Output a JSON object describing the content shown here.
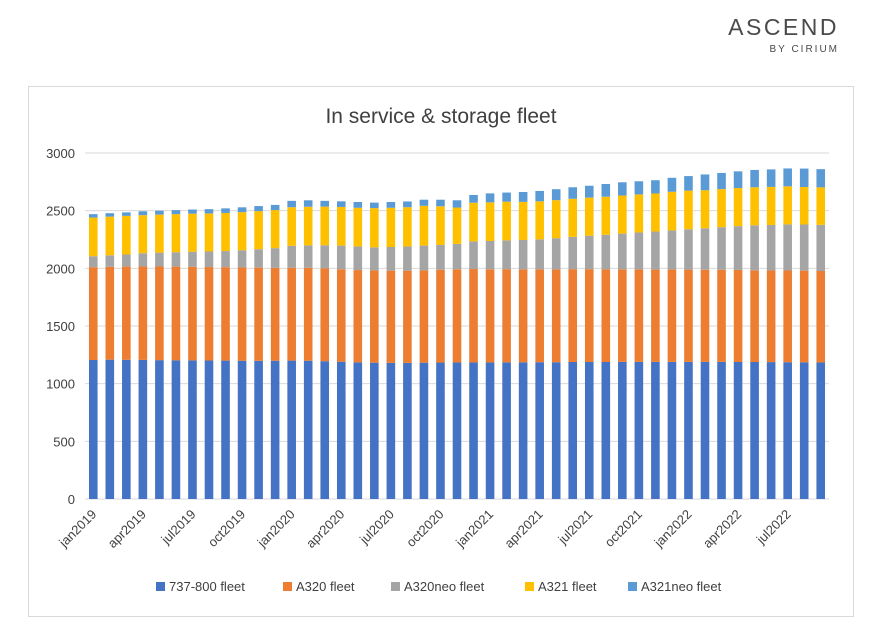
{
  "brand": {
    "name": "ASCEND",
    "sub": "BY CIRIUM"
  },
  "chart_data": {
    "type": "bar",
    "stacked": true,
    "title": "In service & storage fleet",
    "xlabel": "",
    "ylabel": "",
    "ylim": [
      0,
      3000
    ],
    "yticks": [
      0,
      500,
      1000,
      1500,
      2000,
      2500,
      3000
    ],
    "grid": true,
    "legend_position": "bottom",
    "categories": [
      "jan2019",
      "feb2019",
      "mar2019",
      "apr2019",
      "may2019",
      "jun2019",
      "jul2019",
      "aug2019",
      "sep2019",
      "oct2019",
      "nov2019",
      "dec2019",
      "jan2020",
      "feb2020",
      "mar2020",
      "apr2020",
      "may2020",
      "jun2020",
      "jul2020",
      "aug2020",
      "sep2020",
      "oct2020",
      "nov2020",
      "dec2020",
      "jan2021",
      "feb2021",
      "mar2021",
      "apr2021",
      "may2021",
      "jun2021",
      "jul2021",
      "aug2021",
      "sep2021",
      "oct2021",
      "nov2021",
      "dec2021",
      "jan2022",
      "feb2022",
      "mar2022",
      "apr2022",
      "may2022",
      "jun2022",
      "jul2022",
      "aug2022",
      "sep2022"
    ],
    "x_tick_labels": [
      "jan2019",
      "apr2019",
      "jul2019",
      "oct2019",
      "jan2020",
      "apr2020",
      "jul2020",
      "oct2020",
      "jan2021",
      "apr2021",
      "jul2021",
      "oct2021",
      "jan2022",
      "apr2022",
      "jul2022"
    ],
    "series": [
      {
        "name": "737-800 fleet",
        "color": "#4472c4",
        "values": [
          1205,
          1208,
          1207,
          1206,
          1204,
          1203,
          1202,
          1201,
          1200,
          1199,
          1198,
          1199,
          1200,
          1199,
          1195,
          1190,
          1185,
          1182,
          1180,
          1180,
          1182,
          1183,
          1184,
          1184,
          1184,
          1185,
          1185,
          1186,
          1186,
          1188,
          1188,
          1188,
          1189,
          1189,
          1189,
          1189,
          1189,
          1189,
          1189,
          1188,
          1188,
          1187,
          1186,
          1185,
          1184
        ]
      },
      {
        "name": "A320 fleet",
        "color": "#ed7d31",
        "values": [
          805,
          805,
          808,
          810,
          812,
          812,
          812,
          810,
          810,
          808,
          808,
          806,
          805,
          805,
          805,
          802,
          800,
          800,
          800,
          800,
          800,
          805,
          808,
          810,
          808,
          808,
          806,
          805,
          805,
          805,
          805,
          803,
          802,
          802,
          800,
          800,
          800,
          798,
          798,
          798,
          795,
          794,
          795,
          795,
          793
        ]
      },
      {
        "name": "A320neo fleet",
        "color": "#a5a5a5",
        "values": [
          95,
          100,
          105,
          115,
          120,
          125,
          130,
          135,
          140,
          150,
          160,
          170,
          190,
          195,
          200,
          205,
          205,
          200,
          205,
          210,
          215,
          215,
          220,
          240,
          245,
          250,
          255,
          260,
          270,
          280,
          290,
          300,
          310,
          320,
          330,
          340,
          350,
          360,
          370,
          380,
          390,
          395,
          400,
          400,
          400
        ]
      },
      {
        "name": "A321 fleet",
        "color": "#ffc000",
        "values": [
          335,
          335,
          335,
          330,
          330,
          330,
          330,
          330,
          330,
          330,
          330,
          330,
          335,
          335,
          335,
          335,
          335,
          340,
          340,
          340,
          345,
          335,
          315,
          335,
          335,
          335,
          330,
          330,
          330,
          330,
          330,
          330,
          330,
          330,
          330,
          335,
          335,
          330,
          330,
          330,
          330,
          330,
          330,
          325,
          325
        ]
      },
      {
        "name": "A321neo fleet",
        "color": "#5b9bd5",
        "values": [
          30,
          30,
          30,
          34,
          34,
          35,
          36,
          37,
          40,
          42,
          44,
          45,
          55,
          56,
          50,
          49,
          50,
          48,
          50,
          50,
          53,
          57,
          63,
          67,
          78,
          79,
          86,
          90,
          95,
          100,
          103,
          110,
          115,
          114,
          115,
          121,
          126,
          137,
          140,
          145,
          150,
          152,
          155,
          160,
          158
        ]
      }
    ]
  }
}
